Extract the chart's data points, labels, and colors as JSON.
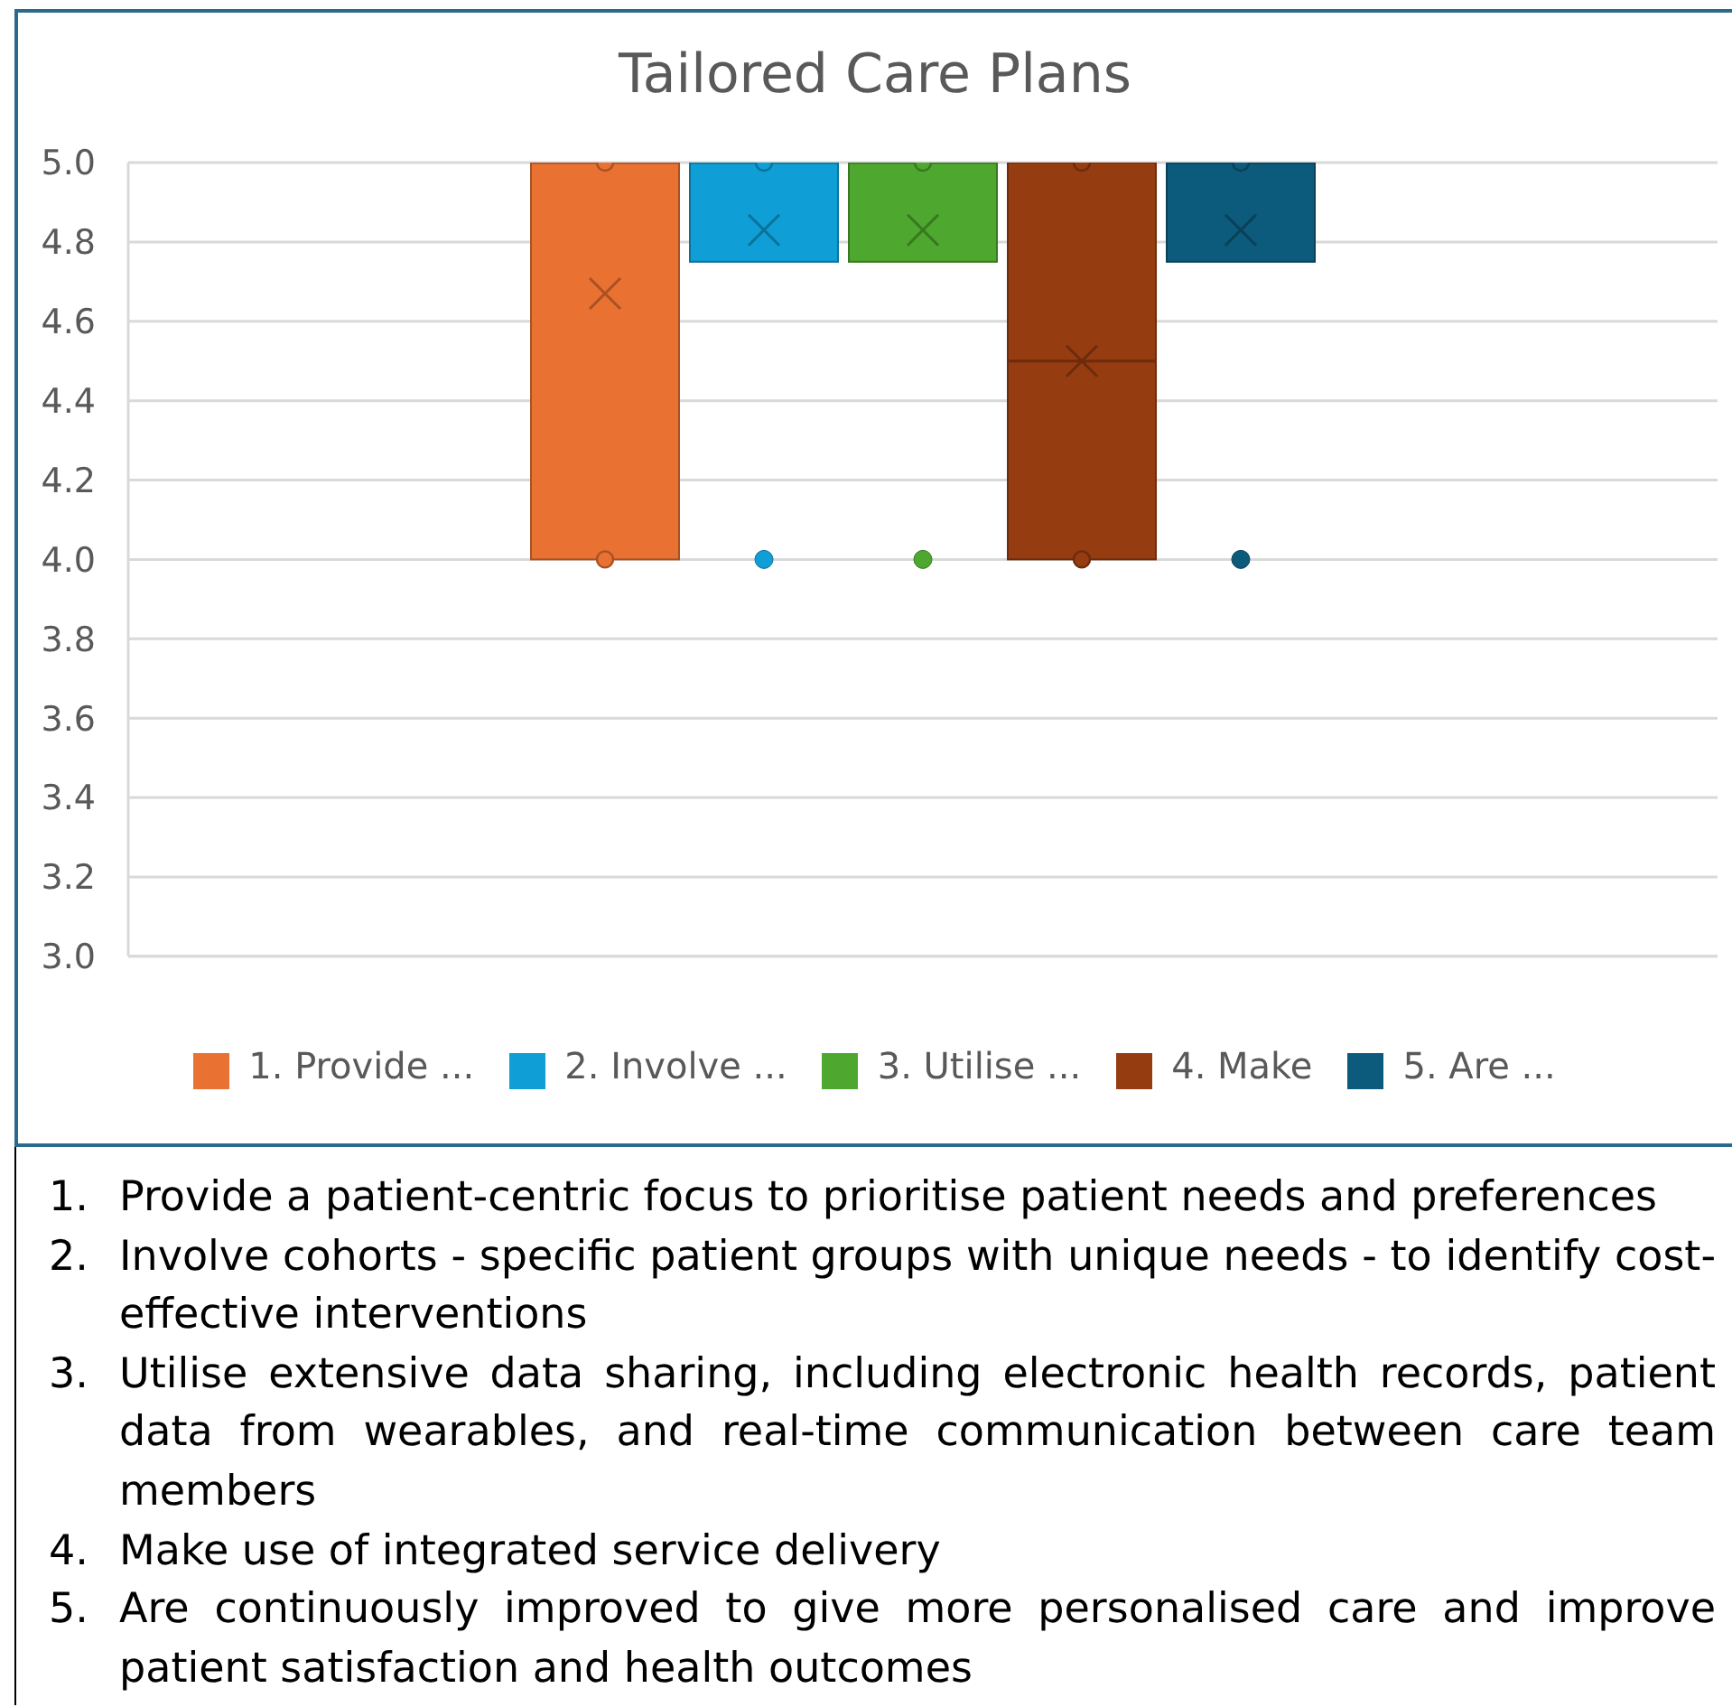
{
  "chart_data": {
    "type": "box",
    "title": "Tailored Care Plans",
    "categories": [
      null
    ],
    "series": [
      {
        "name": "1. Provide ...",
        "color": "#e97132",
        "boxes": [
          {
            "low": 4,
            "q1": 4,
            "median": 5,
            "q3": 5,
            "high": 5,
            "mean": 4.67,
            "outliers": [
              5,
              4
            ]
          }
        ]
      },
      {
        "name": "2. Involve ...",
        "color": "#0f9ed5",
        "boxes": [
          {
            "low": 4.75,
            "q1": 4.75,
            "median": 5,
            "q3": 5,
            "high": 5,
            "mean": 4.83,
            "outliers": [
              5,
              4
            ]
          }
        ]
      },
      {
        "name": "3. Utilise ...",
        "color": "#4ea72e",
        "boxes": [
          {
            "low": 4.75,
            "q1": 4.75,
            "median": 5,
            "q3": 5,
            "high": 5,
            "mean": 4.83,
            "outliers": [
              5,
              4
            ]
          }
        ]
      },
      {
        "name": "4. Make",
        "color": "#963c11",
        "boxes": [
          {
            "low": 4,
            "q1": 4,
            "median": 4.5,
            "q3": 5,
            "high": 5,
            "mean": 4.5,
            "outliers": [
              5,
              4
            ]
          }
        ]
      },
      {
        "name": "5. Are ...",
        "color": "#0c5a7c",
        "boxes": [
          {
            "low": 4.75,
            "q1": 4.75,
            "median": 5,
            "q3": 5,
            "high": 5,
            "mean": 4.83,
            "outliers": [
              5,
              4
            ]
          }
        ]
      }
    ],
    "ylim": [
      3,
      5
    ],
    "yticks": [
      {
        "value": 3,
        "label": "3.0"
      },
      3.2,
      3.4,
      3.6,
      3.8,
      {
        "value": 4,
        "label": "4.0"
      },
      4.2,
      4.4,
      4.6,
      4.8,
      {
        "value": 5,
        "label": "5.0"
      }
    ],
    "grid": "y",
    "legend": "bottom",
    "tick_labels": "y",
    "annotations": [
      "1. Provide a patient-centric focus to prioritise patient needs and preferences",
      "2. Involve cohorts - specific patient groups with unique needs - to identify cost-effective interventions",
      "3. Utilise extensive data sharing, including electronic health records, patient data from wearables, and real-time communication between care team members",
      "4. Make use of integrated service delivery",
      "5. Are continuously improved to give more personalised care and improve patient satisfaction and health outcomes"
    ]
  }
}
